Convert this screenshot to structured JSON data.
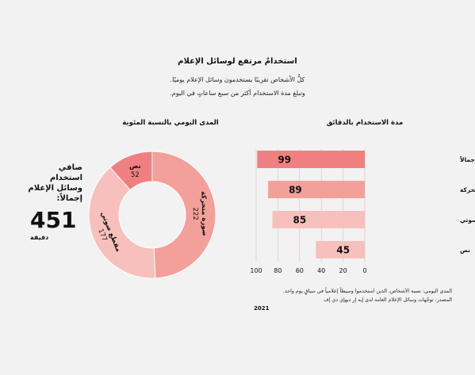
{
  "header": {
    "title": "استخدامٌ مرتفع لوسائل الإعلام",
    "subtitle_line1": "كلُّ الأشخاص تقريبًا يستخدمون وسائل الإعلام يوميًا.",
    "subtitle_line2": "وتبلغ مدة الاستخدام أكثر من سبع ساعاتٍ في اليوم."
  },
  "summary": {
    "label": "صافي\nاستخدام\nوسائل الإعلام\nإجمالاً:",
    "value": "451",
    "unit": "دقيقة"
  },
  "colors": {
    "dark_red": "#f08080",
    "mid_red": "#f4a09a",
    "light_red": "#f7c0bc",
    "background": "#f2f2f2"
  },
  "chart_data": [
    {
      "type": "pie",
      "title": "المدى اليومي بالنسبة المئوية",
      "slices": [
        {
          "label": "صورة متحركة",
          "value": 222,
          "color": "#f4a09a"
        },
        {
          "label": "مقطع صوتي",
          "value": 177,
          "color": "#f7c0bc"
        },
        {
          "label": "نص",
          "value": 52,
          "color": "#f08080"
        }
      ]
    },
    {
      "type": "bar",
      "title": "مدة الاستخدام بالدقائق",
      "orientation": "horizontal",
      "categories": [
        "وسائل الإعلام إجمالاً",
        "صورة متحركة",
        "مقطع صوتي",
        "نص"
      ],
      "values": [
        99,
        89,
        85,
        45
      ],
      "colors": [
        "#f08080",
        "#f4a09a",
        "#f7c0bc",
        "#f7c0bc"
      ],
      "xlim": [
        0,
        100
      ],
      "xticks": [
        "0",
        "20",
        "40",
        "60",
        "80",
        "100"
      ],
      "x_reversed": true
    }
  ],
  "footnote": {
    "line1": "المدى اليومي: نسبة الأشخاص، الذين استخدموا وسيطاً إعلامياً في سياقٍ يوم واحد.",
    "line2": "المصدر: توجّهات وسائل الإعلام العامة لدى إيه إر ديهإي دي إف",
    "year": "2021"
  }
}
